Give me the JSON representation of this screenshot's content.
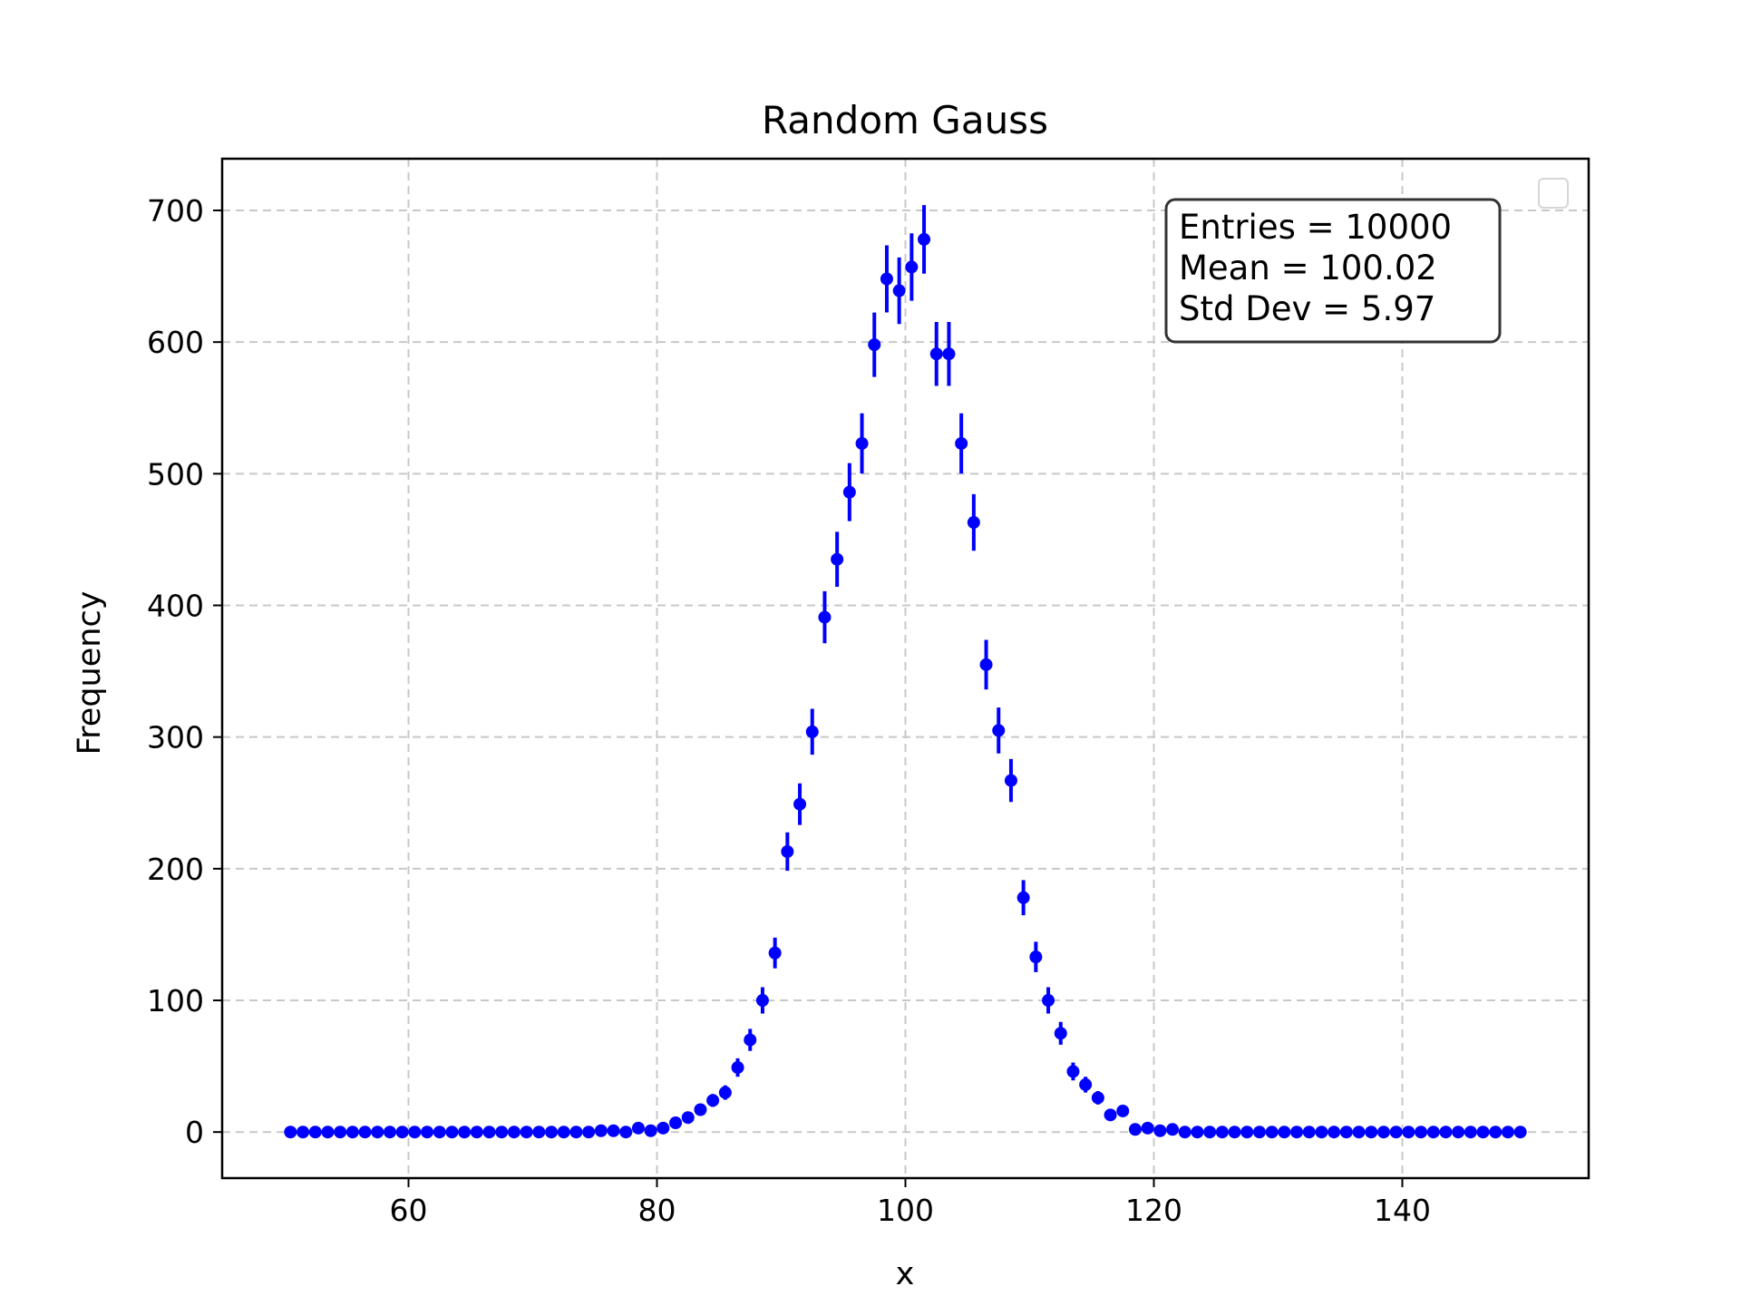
{
  "chart_data": {
    "type": "scatter",
    "title": "Random Gauss",
    "xlabel": "x",
    "ylabel": "Frequency",
    "xlim": [
      45,
      155
    ],
    "ylim": [
      -35,
      700
    ],
    "xticks": [
      60,
      80,
      100,
      120,
      140
    ],
    "yticks": [
      0,
      100,
      200,
      300,
      400,
      500,
      600,
      700
    ],
    "grid": true,
    "error_bars": "sqrt(N)",
    "marker_color": "#0000ff",
    "stats_box": {
      "position": "top-right",
      "lines": [
        "Entries = 10000",
        "Mean = 100.02",
        "Std Dev = 5.97"
      ]
    },
    "legend": {
      "position": "top-right",
      "entries": []
    },
    "series": [
      {
        "x": [
          50.5,
          51.5,
          52.5,
          53.5,
          54.5,
          55.5,
          56.5,
          57.5,
          58.5,
          59.5,
          60.5,
          61.5,
          62.5,
          63.5,
          64.5,
          65.5,
          66.5,
          67.5,
          68.5,
          69.5,
          70.5,
          71.5,
          72.5,
          73.5,
          74.5,
          75.5,
          76.5,
          77.5,
          78.5,
          79.5,
          80.5,
          81.5,
          82.5,
          83.5,
          84.5,
          85.5,
          86.5,
          87.5,
          88.5,
          89.5,
          90.5,
          91.5,
          92.5,
          93.5,
          94.5,
          95.5,
          96.5,
          97.5,
          98.5,
          99.5,
          100.5,
          101.5,
          102.5,
          103.5,
          104.5,
          105.5,
          106.5,
          107.5,
          108.5,
          109.5,
          110.5,
          111.5,
          112.5,
          113.5,
          114.5,
          115.5,
          116.5,
          117.5,
          118.5,
          119.5,
          120.5,
          121.5,
          122.5,
          123.5,
          124.5,
          125.5,
          126.5,
          127.5,
          128.5,
          129.5,
          130.5,
          131.5,
          132.5,
          133.5,
          134.5,
          135.5,
          136.5,
          137.5,
          138.5,
          139.5,
          140.5,
          141.5,
          142.5,
          143.5,
          144.5,
          145.5,
          146.5,
          147.5,
          148.5,
          149.5
        ],
        "y": [
          0,
          0,
          0,
          0,
          0,
          0,
          0,
          0,
          0,
          0,
          0,
          0,
          0,
          0,
          0,
          0,
          0,
          0,
          0,
          0,
          0,
          0,
          0,
          0,
          0,
          1,
          1,
          0,
          3,
          1,
          3,
          7,
          11,
          17,
          24,
          30,
          49,
          70,
          100,
          136,
          213,
          249,
          304,
          391,
          435,
          486,
          523,
          598,
          648,
          639,
          657,
          678,
          591,
          591,
          523,
          463,
          355,
          305,
          267,
          178,
          133,
          100,
          75,
          46,
          36,
          26,
          13,
          16,
          2,
          3,
          1,
          2,
          0,
          0,
          0,
          0,
          0,
          0,
          0,
          0,
          0,
          0,
          0,
          0,
          0,
          0,
          0,
          0,
          0,
          0,
          0,
          0,
          0,
          0,
          0,
          0,
          0,
          0,
          0,
          0
        ]
      }
    ]
  }
}
